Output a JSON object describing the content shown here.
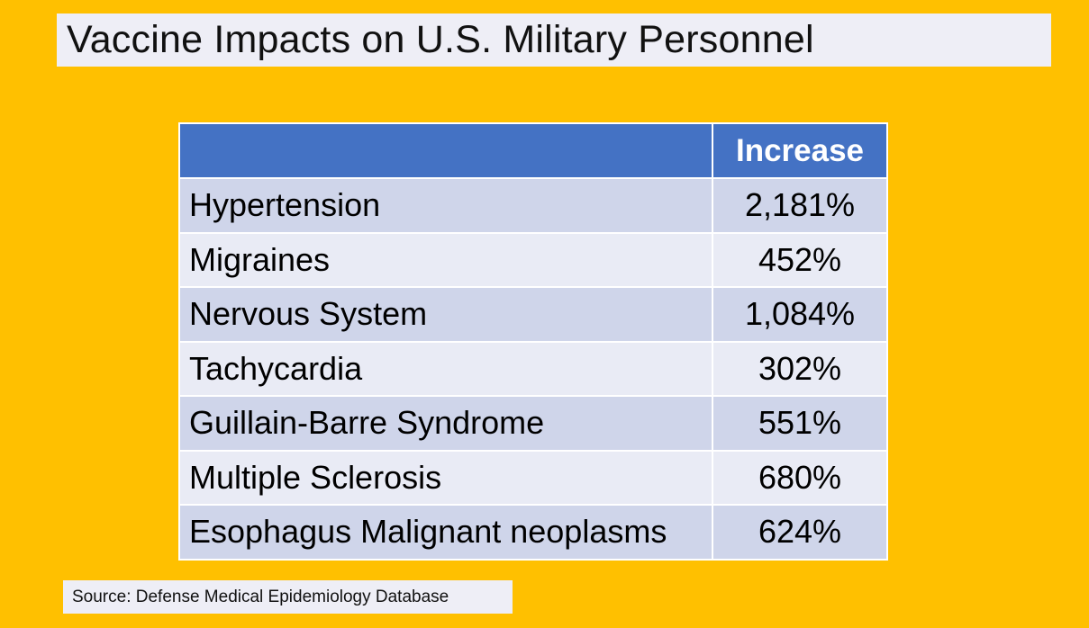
{
  "title": "Vaccine Impacts on U.S. Military Personnel",
  "table": {
    "header": {
      "condition": "",
      "value": "Increase"
    },
    "rows": [
      {
        "condition": "Hypertension",
        "value": "2,181%"
      },
      {
        "condition": "Migraines",
        "value": "452%"
      },
      {
        "condition": "Nervous System",
        "value": "1,084%"
      },
      {
        "condition": "Tachycardia",
        "value": "302%"
      },
      {
        "condition": "Guillain-Barre Syndrome",
        "value": "551%"
      },
      {
        "condition": "Multiple Sclerosis",
        "value": "680%"
      },
      {
        "condition": "Esophagus Malignant neoplasms",
        "value": "624%"
      }
    ]
  },
  "source": "Source: Defense Medical Epidemiology Database",
  "colors": {
    "background": "#FFC000",
    "header": "#4472C4",
    "row_dark": "#CFD5EA",
    "row_light": "#E9EBF5",
    "title_box": "#EEEEF6"
  }
}
